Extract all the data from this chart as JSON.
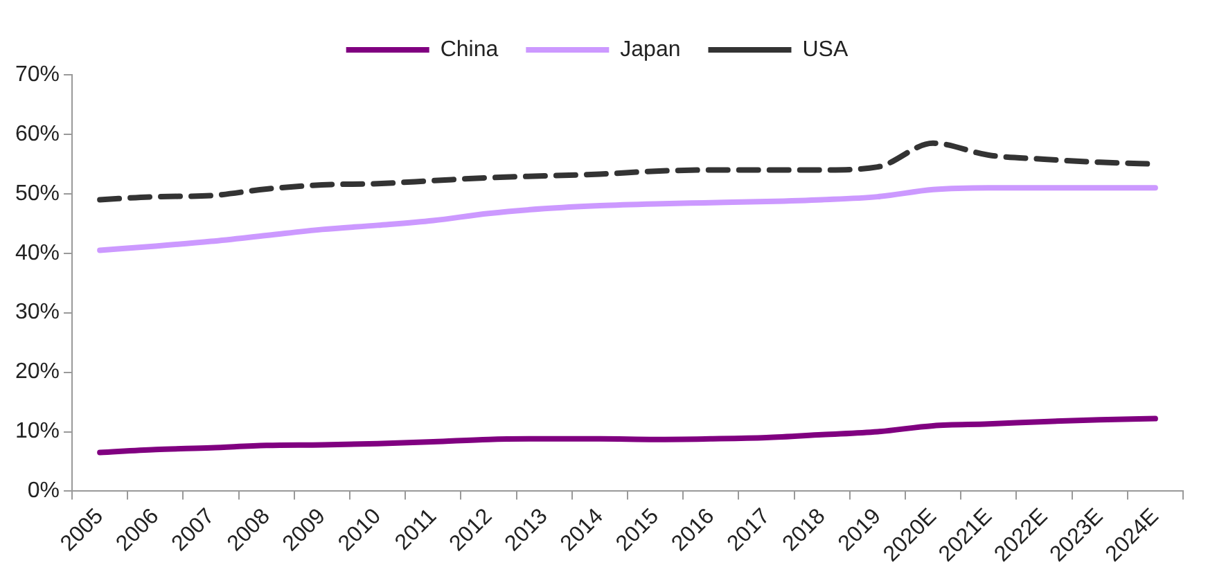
{
  "chart_data": {
    "type": "line",
    "categories": [
      "2005",
      "2006",
      "2007",
      "2008",
      "2009",
      "2010",
      "2011",
      "2012",
      "2013",
      "2014",
      "2015",
      "2016",
      "2017",
      "2018",
      "2019",
      "2020E",
      "2021E",
      "2022E",
      "2023E",
      "2024E"
    ],
    "series": [
      {
        "name": "China",
        "color": "#800080",
        "line_style": "solid",
        "values": [
          6.5,
          7,
          7.3,
          7.7,
          7.8,
          8,
          8.3,
          8.7,
          8.8,
          8.8,
          8.7,
          8.8,
          9,
          9.5,
          10,
          11,
          11.3,
          11.7,
          12,
          12.2
        ]
      },
      {
        "name": "Japan",
        "color": "#cc99ff",
        "line_style": "solid",
        "values": [
          40.5,
          41.2,
          42,
          43,
          44,
          44.7,
          45.5,
          46.7,
          47.5,
          48,
          48.3,
          48.5,
          48.7,
          49,
          49.5,
          50.7,
          51,
          51,
          51,
          51
        ]
      },
      {
        "name": "USA",
        "color": "#333333",
        "line_style": "dashed",
        "values": [
          49,
          49.5,
          49.7,
          50.8,
          51.5,
          51.7,
          52.2,
          52.7,
          53,
          53.3,
          53.8,
          54,
          54,
          54,
          54.5,
          58.5,
          56.5,
          55.8,
          55.3,
          55
        ]
      }
    ],
    "ylim": [
      0,
      70
    ],
    "yticks": [
      {
        "value": 0,
        "label": "0%"
      },
      {
        "value": 10,
        "label": "10%"
      },
      {
        "value": 20,
        "label": "20%"
      },
      {
        "value": 30,
        "label": "30%"
      },
      {
        "value": 40,
        "label": "40%"
      },
      {
        "value": 50,
        "label": "50%"
      },
      {
        "value": 60,
        "label": "60%"
      },
      {
        "value": 70,
        "label": "70%"
      }
    ],
    "grid": false,
    "legend": "top",
    "marker": "none"
  }
}
